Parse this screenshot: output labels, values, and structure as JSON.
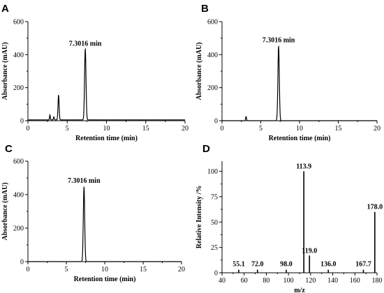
{
  "chart_data": [
    {
      "type": "line",
      "panel": "A",
      "xlabel": "Retention time (min)",
      "ylabel": "Absorbance (mAU)",
      "xlim": [
        0,
        20
      ],
      "ylim": [
        0,
        600
      ],
      "xticks": [
        0,
        5,
        10,
        15,
        20
      ],
      "yticks": [
        0,
        200,
        400,
        600
      ],
      "baseline": 5,
      "peaks": [
        {
          "x": 2.8,
          "y": 30,
          "width": 0.05
        },
        {
          "x": 3.3,
          "y": 18,
          "width": 0.05
        },
        {
          "x": 3.9,
          "y": 150,
          "width": 0.07
        },
        {
          "x": 7.3016,
          "y": 430,
          "width": 0.09
        }
      ],
      "annotations": [
        {
          "text": "7.3016 min",
          "x": 7.3016,
          "y": 455
        }
      ]
    },
    {
      "type": "line",
      "panel": "B",
      "xlabel": "Retention time (min)",
      "ylabel": "Absorbance (mAU)",
      "xlim": [
        0,
        20
      ],
      "ylim": [
        0,
        600
      ],
      "xticks": [
        0,
        5,
        10,
        15,
        20
      ],
      "yticks": [
        0,
        200,
        400,
        600
      ],
      "baseline": 0,
      "peaks": [
        {
          "x": 3.1,
          "y": 25,
          "width": 0.06
        },
        {
          "x": 7.3016,
          "y": 450,
          "width": 0.09
        }
      ],
      "annotations": [
        {
          "text": "7.3016 min",
          "x": 7.3016,
          "y": 475
        }
      ]
    },
    {
      "type": "line",
      "panel": "C",
      "xlabel": "Retention time (min)",
      "ylabel": "Absorbance (mAU)",
      "xlim": [
        0,
        20
      ],
      "ylim": [
        0,
        600
      ],
      "xticks": [
        0,
        5,
        10,
        15,
        20
      ],
      "yticks": [
        0,
        200,
        400,
        600
      ],
      "baseline": 0,
      "peaks": [
        {
          "x": 7.3016,
          "y": 445,
          "width": 0.09
        }
      ],
      "annotations": [
        {
          "text": "7.3016 min",
          "x": 7.3016,
          "y": 470
        }
      ]
    },
    {
      "type": "bar",
      "panel": "D",
      "xlabel": "m/z",
      "ylabel": "Relative Intensity /%",
      "xlim": [
        40,
        180
      ],
      "ylim": [
        0,
        110
      ],
      "xticks": [
        40,
        60,
        80,
        100,
        120,
        140,
        160,
        180
      ],
      "yticks": [
        0,
        25,
        50,
        75,
        100
      ],
      "x": [
        55.1,
        72.0,
        98.0,
        113.9,
        119.0,
        136.0,
        167.7,
        178.0
      ],
      "values": [
        3,
        3,
        3,
        100,
        17,
        3,
        3,
        60
      ],
      "labels": [
        "55.1",
        "72.0",
        "98.0",
        "113.9",
        "119.0",
        "136.0",
        "167.7",
        "178.0"
      ]
    }
  ]
}
